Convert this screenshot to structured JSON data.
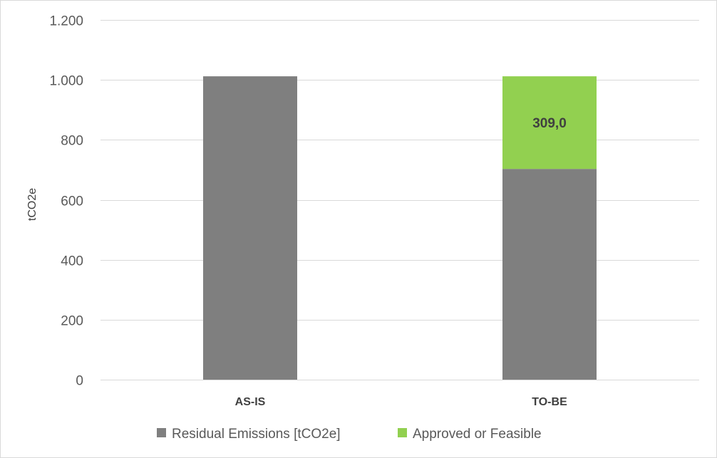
{
  "chart_data": {
    "type": "bar",
    "stacked": true,
    "categories": [
      "AS-IS",
      "TO-BE"
    ],
    "series": [
      {
        "name": "Residual Emissions [tCO2e]",
        "color": "#7f7f7f",
        "values": [
          1012,
          703
        ]
      },
      {
        "name": "Approved or Feasible",
        "color": "#92d050",
        "values": [
          0,
          309.0
        ],
        "data_labels": [
          "",
          "309,0"
        ]
      }
    ],
    "title": "",
    "xlabel": "",
    "ylabel": "tCO2e",
    "ylim": [
      0,
      1200
    ],
    "yticks": [
      0,
      200,
      400,
      600,
      800,
      1000,
      1200
    ],
    "ytick_labels": [
      "0",
      "200",
      "400",
      "600",
      "800",
      "1.000",
      "1.200"
    ],
    "grid": true,
    "gridline_color": "#d9d9d9",
    "legend_position": "bottom"
  }
}
